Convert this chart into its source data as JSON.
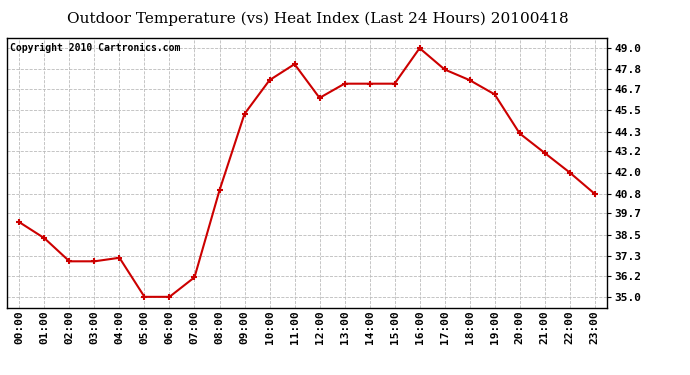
{
  "title": "Outdoor Temperature (vs) Heat Index (Last 24 Hours) 20100418",
  "copyright": "Copyright 2010 Cartronics.com",
  "x_labels": [
    "00:00",
    "01:00",
    "02:00",
    "03:00",
    "04:00",
    "05:00",
    "06:00",
    "07:00",
    "08:00",
    "09:00",
    "10:00",
    "11:00",
    "12:00",
    "13:00",
    "14:00",
    "15:00",
    "16:00",
    "17:00",
    "18:00",
    "19:00",
    "20:00",
    "21:00",
    "22:00",
    "23:00"
  ],
  "y_values": [
    39.2,
    38.3,
    37.0,
    37.0,
    37.2,
    35.0,
    35.0,
    36.1,
    41.0,
    45.3,
    47.2,
    48.1,
    46.2,
    47.0,
    47.0,
    47.0,
    49.0,
    47.8,
    47.2,
    46.4,
    44.2,
    43.1,
    42.0,
    40.8
  ],
  "y_ticks": [
    35.0,
    36.2,
    37.3,
    38.5,
    39.7,
    40.8,
    42.0,
    43.2,
    44.3,
    45.5,
    46.7,
    47.8,
    49.0
  ],
  "y_tick_labels": [
    "35.0",
    "36.2",
    "37.3",
    "38.5",
    "39.7",
    "40.8",
    "42.0",
    "43.2",
    "44.3",
    "45.5",
    "46.7",
    "47.8",
    "49.0"
  ],
  "ylim": [
    34.4,
    49.6
  ],
  "line_color": "#cc0000",
  "marker": "+",
  "marker_color": "#cc0000",
  "marker_size": 5,
  "marker_linewidth": 1.5,
  "line_width": 1.5,
  "background_color": "#ffffff",
  "plot_bg_color": "#ffffff",
  "grid_color": "#bbbbbb",
  "title_fontsize": 11,
  "tick_fontsize": 8,
  "copyright_fontsize": 7
}
